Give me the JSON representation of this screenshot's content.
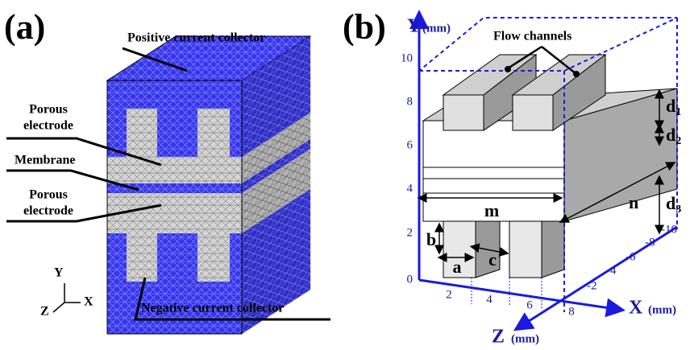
{
  "panel_a": {
    "label": "(a)",
    "labels": {
      "positive": "Positive current collector",
      "porous_top": [
        "Porous",
        "electrode"
      ],
      "membrane": "Membrane",
      "porous_bottom": [
        "Porous",
        "electrode"
      ],
      "negative": "Negative current collector"
    },
    "axes": {
      "y": "Y",
      "x": "X",
      "z": "Z"
    }
  },
  "panel_b": {
    "label": "(b)",
    "flow": "Flow channels",
    "y_axis": {
      "name": "Y",
      "unit": "(mm)",
      "ticks": [
        0,
        2,
        4,
        6,
        8,
        10
      ]
    },
    "x_axis": {
      "name": "X",
      "unit": "(mm)",
      "ticks": [
        2,
        4,
        6,
        8
      ]
    },
    "z_axis": {
      "name": "Z",
      "unit": "(mm)",
      "ticks": [
        -2,
        -4,
        -6,
        -8,
        -10
      ]
    },
    "dims": {
      "d1": {
        "symbol": "d",
        "sub": "1"
      },
      "d2": {
        "symbol": "d",
        "sub": "2"
      },
      "d3": {
        "symbol": "d",
        "sub": "3"
      },
      "m": "m",
      "n": "n",
      "a": "a",
      "b": "b",
      "c": "c"
    }
  }
}
